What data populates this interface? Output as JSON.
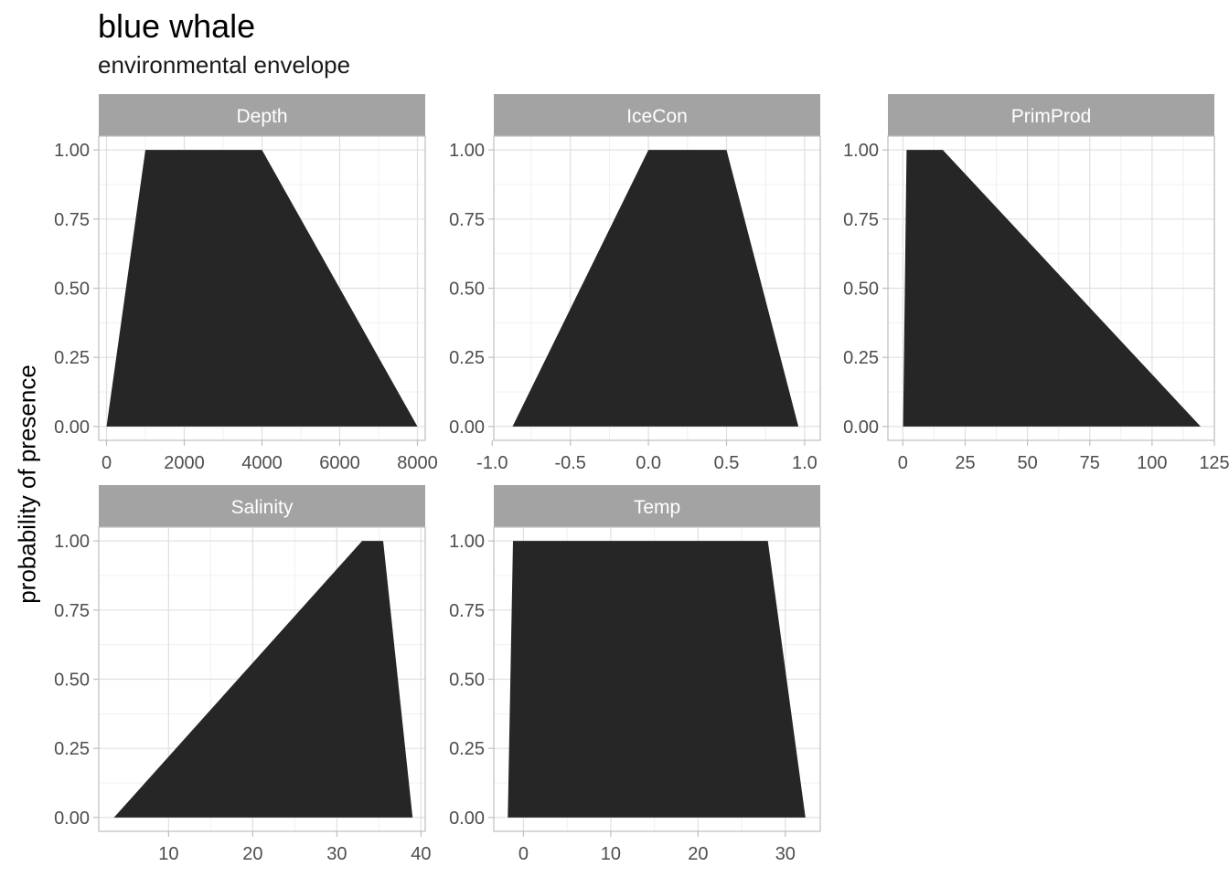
{
  "chart_data": {
    "type": "area",
    "title": "blue whale",
    "subtitle": "environmental envelope",
    "ylabel": "probability of presence",
    "xlabel": "",
    "grid": true,
    "fill_color": "#262626",
    "strip_color": "#a3a3a3",
    "grid_color": "#e0e0e0",
    "y_ticks": [
      "1.00",
      "0.75",
      "0.50",
      "0.25",
      "0.00"
    ],
    "ylim": [
      -0.05,
      1.05
    ],
    "panels": [
      {
        "name": "Depth",
        "xlim": [
          -200,
          8200
        ],
        "x_ticks": [
          0,
          2000,
          4000,
          6000,
          8000
        ],
        "x_tick_labels": [
          "0",
          "2000",
          "4000",
          "6000",
          "8000"
        ],
        "x": [
          0,
          1000,
          4000,
          8000
        ],
        "y": [
          0,
          1,
          1,
          0
        ]
      },
      {
        "name": "IceCon",
        "xlim": [
          -0.99,
          1.1
        ],
        "x_ticks": [
          -1.0,
          -0.5,
          0.0,
          0.5,
          1.0
        ],
        "x_tick_labels": [
          "-1.0",
          "-0.5",
          "0.0",
          "0.5",
          "1.0"
        ],
        "x": [
          -0.87,
          0.0,
          0.5,
          0.96
        ],
        "y": [
          0,
          1,
          1,
          0
        ]
      },
      {
        "name": "PrimProd",
        "xlim": [
          -6,
          125
        ],
        "x_ticks": [
          0,
          25,
          50,
          75,
          100,
          125
        ],
        "x_tick_labels": [
          "0",
          "25",
          "50",
          "75",
          "100",
          "125"
        ],
        "x": [
          0.1,
          1.5,
          16,
          119.5
        ],
        "y": [
          0,
          1,
          1,
          0
        ]
      },
      {
        "name": "Salinity",
        "xlim": [
          1.7,
          40.5
        ],
        "x_ticks": [
          10,
          20,
          30,
          40
        ],
        "x_tick_labels": [
          "10",
          "20",
          "30",
          "40"
        ],
        "x": [
          3.5,
          33,
          35.5,
          39
        ],
        "y": [
          0,
          1,
          1,
          0
        ]
      },
      {
        "name": "Temp",
        "xlim": [
          -3.4,
          34.0
        ],
        "x_ticks": [
          0,
          10,
          20,
          30
        ],
        "x_tick_labels": [
          "0",
          "10",
          "20",
          "30"
        ],
        "x": [
          -1.8,
          -1.2,
          28,
          32.3
        ],
        "y": [
          0,
          1,
          1,
          0
        ]
      }
    ]
  }
}
